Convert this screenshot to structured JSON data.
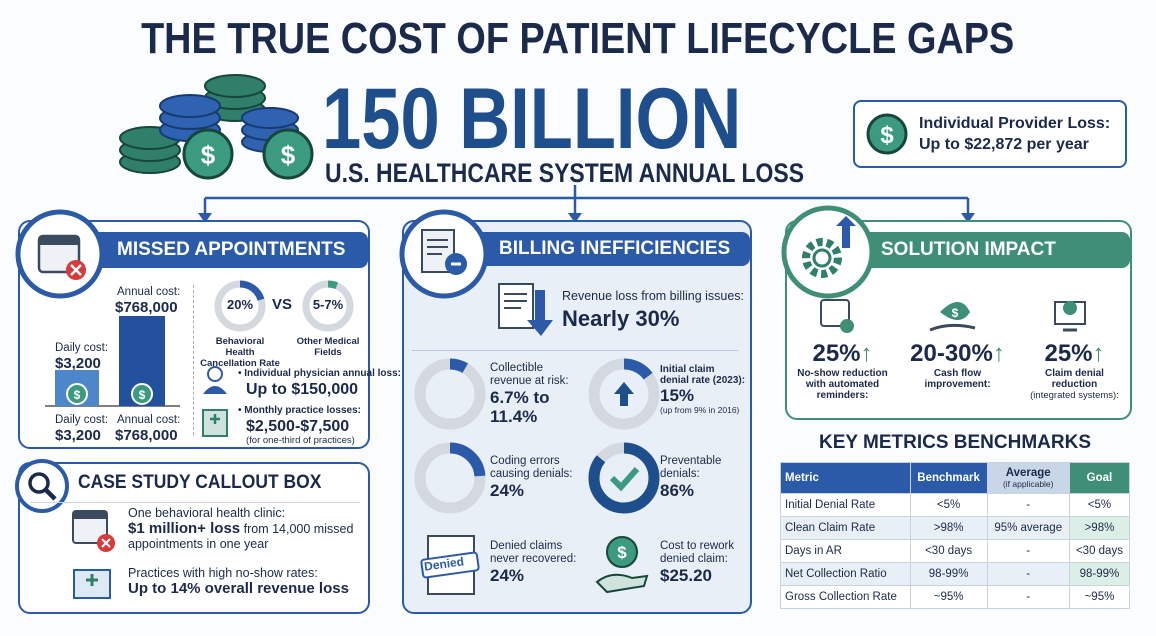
{
  "header": {
    "title": "THE TRUE COST OF PATIENT LIFECYCLE GAPS",
    "headline": "150 BILLION",
    "subheadline": "U.S. HEALTHCARE SYSTEM ANNUAL LOSS",
    "callout": {
      "line1": "Individual Provider Loss:",
      "line2": "Up to $22,872 per year"
    }
  },
  "missed": {
    "title": "MISSED APPOINTMENTS",
    "bars": [
      {
        "top_label": "Daily cost:",
        "top_value": "$3,200",
        "bottom_label": "Daily cost:",
        "bottom_value": "$3,200"
      },
      {
        "top_label": "Annual cost:",
        "top_value": "$768,000",
        "bottom_label": "Annual cost:",
        "bottom_value": "$768,000"
      }
    ],
    "comparison": {
      "left": {
        "value": "20%",
        "label": "Behavioral Health Cancellation Rate"
      },
      "vs": "VS",
      "right": {
        "value": "5-7%",
        "label": "Other Medical Fields"
      }
    },
    "items": [
      {
        "label": "Individual physician annual loss:",
        "value": "Up to $150,000"
      },
      {
        "label": "Monthly practice losses:",
        "value": "$2,500-$7,500",
        "note": "(for one-third of practices)"
      }
    ]
  },
  "case_study": {
    "title": "CASE STUDY CALLOUT BOX",
    "items": [
      {
        "label": "One behavioral health clinic:",
        "bold": "$1 million+ loss",
        "rest": "from 14,000 missed appointments in one year"
      },
      {
        "label": "Practices with high no-show rates:",
        "bold": "Up to 14% overall revenue loss"
      }
    ]
  },
  "billing": {
    "title": "BILLING INEFFICIENCIES",
    "summary": {
      "label": "Revenue loss from billing issues:",
      "value": "Nearly 30%"
    },
    "stats": [
      {
        "label": "Collectible revenue at risk:",
        "value": "6.7% to 11.4%"
      },
      {
        "label": "Initial claim denial rate (2023):",
        "value": "15%",
        "note": "(up from 9% in 2016)"
      },
      {
        "label": "Coding errors causing denials:",
        "value": "24%"
      },
      {
        "label": "Preventable denials:",
        "value": "86%"
      },
      {
        "label": "Denied claims never recovered:",
        "value": "24%",
        "icon_text": "Denied"
      },
      {
        "label": "Cost to rework denied claim:",
        "value": "$25.20"
      }
    ]
  },
  "solution": {
    "title": "SOLUTION IMPACT",
    "items": [
      {
        "value": "25%",
        "label": "No-show reduction with automated reminders:"
      },
      {
        "value": "20-30%",
        "label": "Cash flow improvement:"
      },
      {
        "value": "25%",
        "label": "Claim denial reduction",
        "note": "(integrated systems):"
      }
    ]
  },
  "benchmarks": {
    "title": "KEY METRICS BENCHMARKS",
    "columns": [
      "Metric",
      "Benchmark",
      "Average",
      "Goal"
    ],
    "column_note": "(if applicable)",
    "rows": [
      [
        "Initial Denial Rate",
        "<5%",
        "-",
        "<5%"
      ],
      [
        "Clean Claim Rate",
        ">98%",
        "95% average",
        ">98%"
      ],
      [
        "Days in AR",
        "<30 days",
        "-",
        "<30 days"
      ],
      [
        "Net Collection Ratio",
        "98-99%",
        "-",
        "98-99%"
      ],
      [
        "Gross Collection Rate",
        "~95%",
        "-",
        "~95%"
      ]
    ]
  }
}
